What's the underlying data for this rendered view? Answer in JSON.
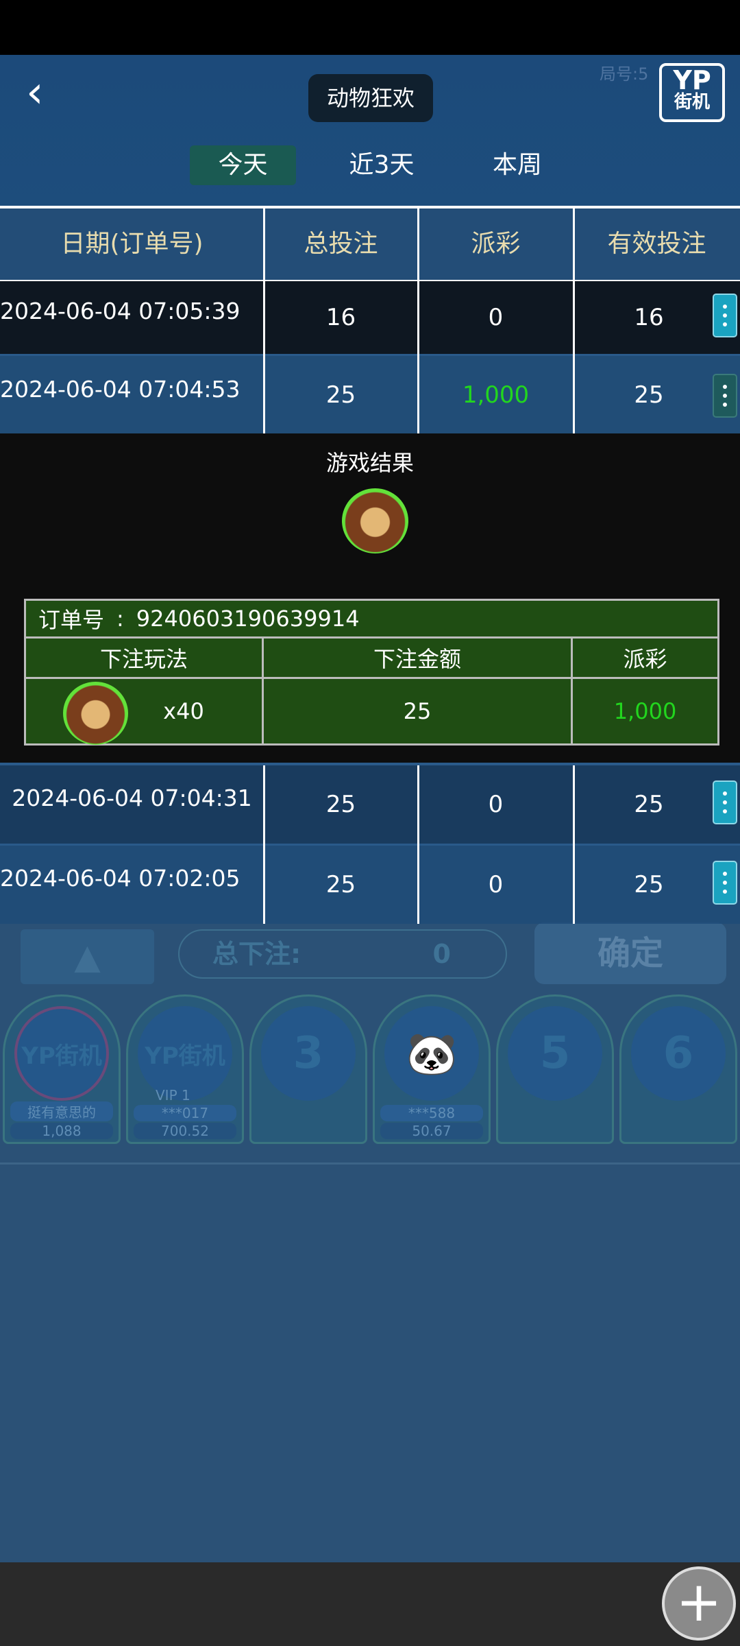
{
  "header": {
    "title": "动物狂欢",
    "back_icon": "chevron-left-icon",
    "logo_text": [
      "YP",
      "街机"
    ],
    "round_label": "局号:5"
  },
  "tabs": [
    {
      "label": "今天",
      "active": true
    },
    {
      "label": "近3天",
      "active": false
    },
    {
      "label": "本周",
      "active": false
    }
  ],
  "table": {
    "columns": [
      "日期(订单号)",
      "总投注",
      "派彩",
      "有效投注"
    ],
    "rows": [
      {
        "date": "2024-06-04 07:05:39",
        "total_bet": "16",
        "payout": "0",
        "valid_bet": "16",
        "expanded": false
      },
      {
        "date": "2024-06-04 07:04:53",
        "total_bet": "25",
        "payout": "1,000",
        "valid_bet": "25",
        "expanded": true
      },
      {
        "date": "2024-06-04 07:04:31",
        "total_bet": "25",
        "payout": "0",
        "valid_bet": "25",
        "expanded": false
      },
      {
        "date": "2024-06-04 07:02:05",
        "total_bet": "25",
        "payout": "0",
        "valid_bet": "25",
        "expanded": false
      }
    ]
  },
  "detail": {
    "result_label": "游戏结果",
    "result_icon": "lion-icon",
    "order_label": "订单号",
    "order_sep": ":",
    "order_no": "9240603190639914",
    "columns": [
      "下注玩法",
      "下注金额",
      "派彩"
    ],
    "bet": {
      "icon": "lion-icon",
      "multiplier": "x40",
      "amount": "25",
      "payout": "1,000"
    }
  },
  "background": {
    "total_bet_label": "总下注:",
    "total_bet_value": "0",
    "confirm_label": "确定",
    "seats": [
      {
        "badge": "YP街机",
        "name": "挺有意思的",
        "amount": "1,088"
      },
      {
        "badge": "YP街机",
        "vip": "VIP 1",
        "name": "***017",
        "amount": "700.52"
      },
      {
        "badge": "3"
      },
      {
        "badge": "panda",
        "name": "***588",
        "amount": "50.67"
      },
      {
        "badge": "5"
      },
      {
        "badge": "6"
      }
    ]
  },
  "colors": {
    "payout_win": "#22d61e",
    "tab_active": "#1a5a52",
    "detail_table": "#1f4d13",
    "kebab": "#1aa3c0"
  },
  "fab": {
    "icon": "plus-icon"
  }
}
